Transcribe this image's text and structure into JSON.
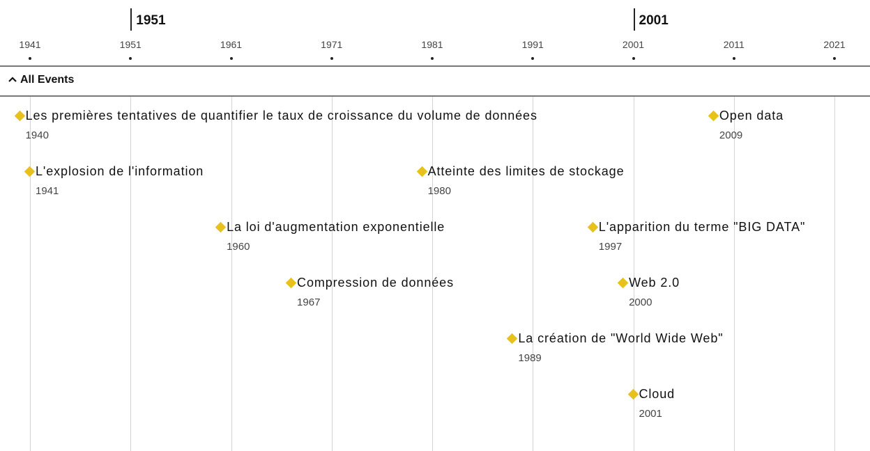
{
  "eras": [
    1951,
    2001
  ],
  "ticks": [
    1941,
    1951,
    1961,
    1971,
    1981,
    1991,
    2001,
    2011,
    2021
  ],
  "group": {
    "label": "All Events"
  },
  "events": [
    {
      "title": "Les premières tentatives de quantifier le taux de croissance du volume de données",
      "year": 1940
    },
    {
      "title": "Open data",
      "year": 2009
    },
    {
      "title": "L'explosion de l'information",
      "year": 1941
    },
    {
      "title": "Atteinte des limites de stockage",
      "year": 1980
    },
    {
      "title": "La loi d'augmentation exponentielle",
      "year": 1960
    },
    {
      "title": "L'apparition du terme \"BIG DATA\"",
      "year": 1997
    },
    {
      "title": "Compression de données",
      "year": 1967
    },
    {
      "title": "Web 2.0",
      "year": 2000
    },
    {
      "title": "La création de \"World Wide Web\"",
      "year": 1989
    },
    {
      "title": "Cloud",
      "year": 2001
    }
  ]
}
